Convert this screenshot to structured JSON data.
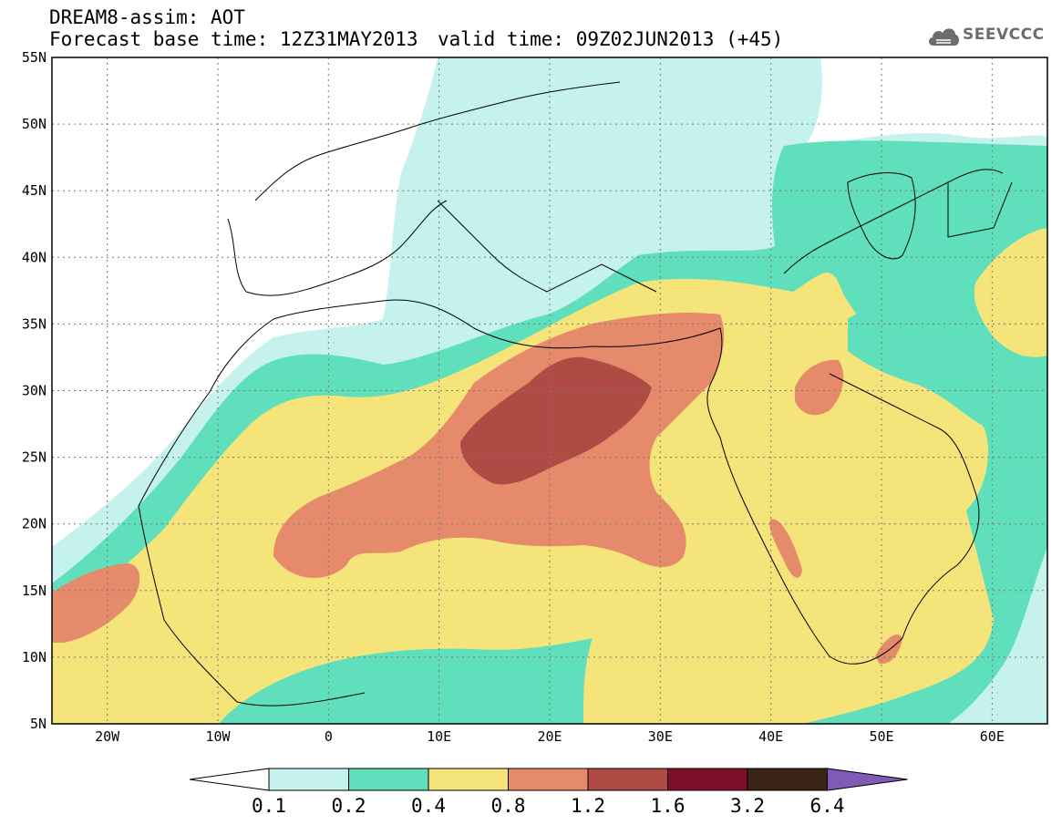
{
  "header": {
    "line1": "DREAM8-assim: AOT",
    "line2": "Forecast base time: 12Z31MAY2013",
    "valid": "valid time: 09Z02JUN2013 (+45)",
    "logo_text": "SEEVCCC"
  },
  "axes": {
    "y_ticks": [
      "55N",
      "50N",
      "45N",
      "40N",
      "35N",
      "30N",
      "25N",
      "20N",
      "15N",
      "10N",
      "5N"
    ],
    "x_ticks": [
      "20W",
      "10W",
      "0",
      "10E",
      "20E",
      "30E",
      "40E",
      "50E",
      "60E"
    ],
    "lon_range": [
      -25,
      65
    ],
    "lat_range": [
      5,
      55
    ]
  },
  "colorbar": {
    "labels": [
      "0.1",
      "0.2",
      "0.4",
      "0.8",
      "1.2",
      "1.6",
      "3.2",
      "6.4"
    ],
    "colors": [
      "#c6f2ee",
      "#5fdfbb",
      "#f5e47a",
      "#e58a6a",
      "#b04a45",
      "#7c0f2a",
      "#3b2416",
      "#7f5bb5"
    ],
    "below_color": "#ffffff"
  },
  "colors": {
    "coast": "#000000",
    "grid": "#7a7a7a",
    "logo": "#6d6d6d"
  }
}
